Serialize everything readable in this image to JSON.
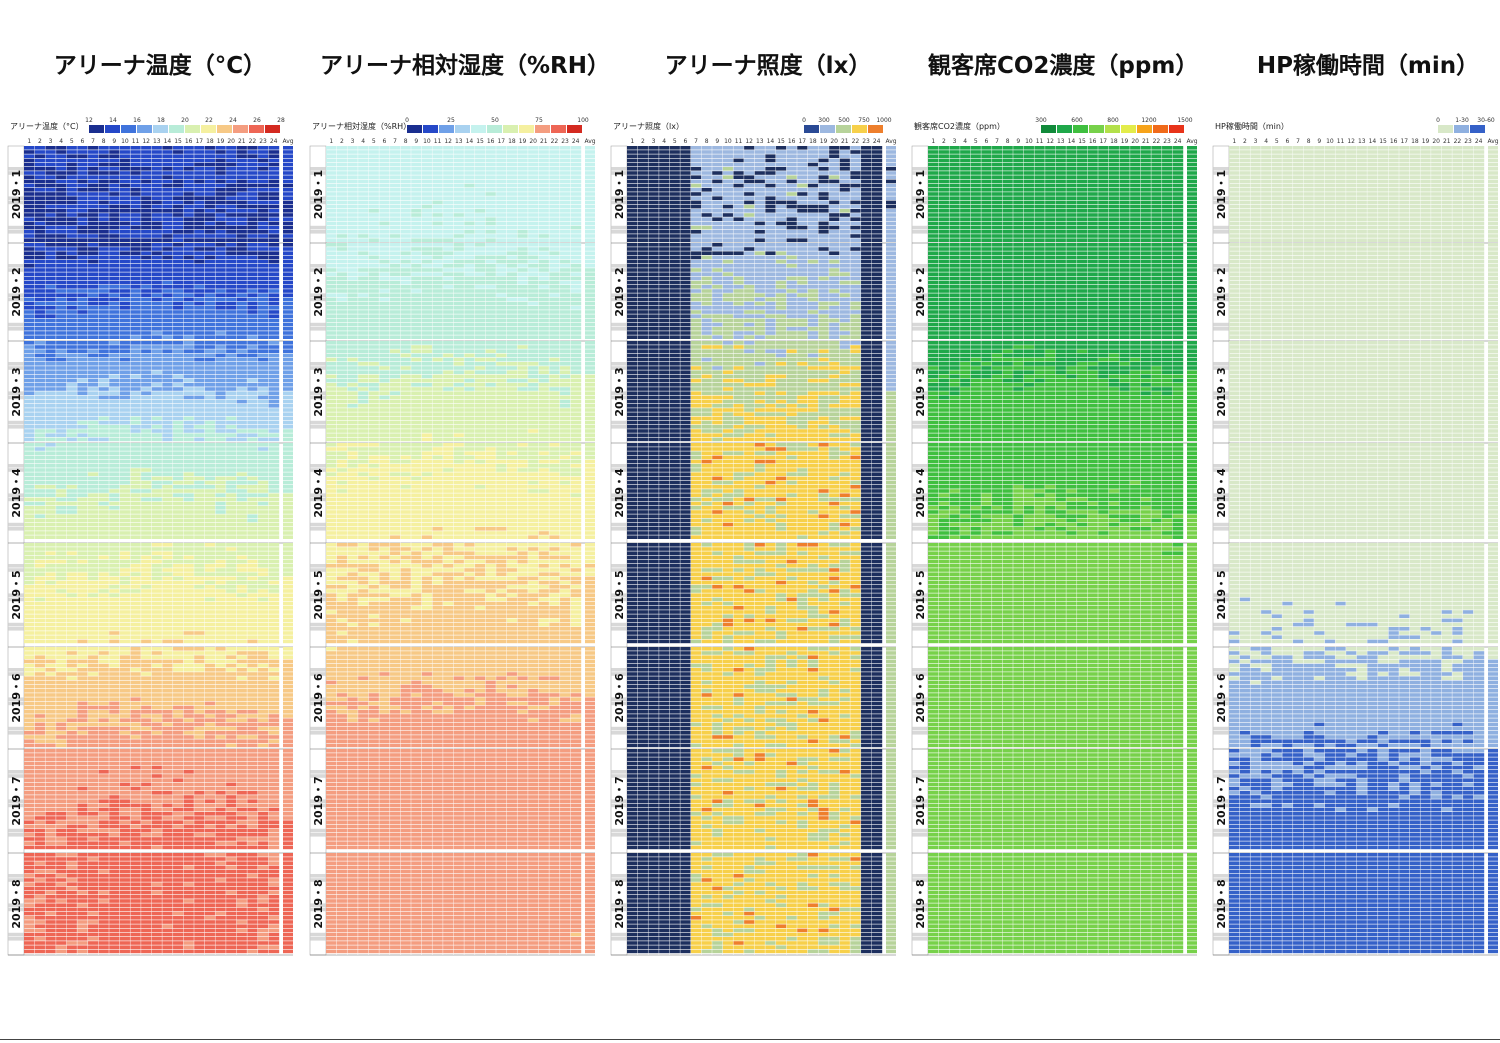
{
  "month_labels": [
    "2019・1",
    "2019・2",
    "2019・3",
    "2019・4",
    "2019・5",
    "2019・6",
    "2019・7",
    "2019・8"
  ],
  "hour_labels": [
    "1",
    "2",
    "3",
    "4",
    "5",
    "6",
    "7",
    "8",
    "9",
    "10",
    "11",
    "12",
    "13",
    "14",
    "15",
    "16",
    "17",
    "18",
    "19",
    "20",
    "21",
    "22",
    "23",
    "24"
  ],
  "avg_label": "Avg",
  "chart_data": [
    {
      "type": "heatmap",
      "title": "アリーナ温度（°C）",
      "inner_title": "アリーナ温度（°C）",
      "legend_ticks": [
        "12",
        "14",
        "16",
        "18",
        "20",
        "22",
        "24",
        "26",
        "28"
      ],
      "legend_colors": [
        "#1a2e8f",
        "#2548c8",
        "#3f73dc",
        "#6fa0e8",
        "#a9d2f0",
        "#b8ecd8",
        "#d9f0b0",
        "#f5f0a0",
        "#f7c986",
        "#f49d80",
        "#ee6655",
        "#d42a20"
      ],
      "month_profile": [
        11,
        10.5,
        14,
        18.5,
        21,
        23,
        26,
        27.5
      ],
      "scale": [
        10,
        30
      ],
      "palette": [
        "#1a2e8f",
        "#2548c8",
        "#3f73dc",
        "#6fa0e8",
        "#a9d2f0",
        "#b8ecd8",
        "#d9f0b0",
        "#f5f0a0",
        "#f7c986",
        "#f49d80",
        "#ee6655",
        "#e8573e"
      ]
    },
    {
      "type": "heatmap",
      "title": "アリーナ相対湿度（%RH）",
      "inner_title": "アリーナ相対湿度（%RH）",
      "legend_ticks": [
        "0",
        "25",
        "50",
        "75",
        "100"
      ],
      "legend_colors": [
        "#1a2e8f",
        "#2548c8",
        "#6fa0e8",
        "#a9d2f0",
        "#c5f2ee",
        "#b8ecd8",
        "#d9f0b0",
        "#f5f0a0",
        "#f49d80",
        "#ee6655",
        "#d42a20"
      ],
      "month_profile": [
        28,
        32,
        40,
        52,
        62,
        68,
        80,
        78
      ],
      "scale": [
        0,
        100
      ],
      "palette": [
        "#2548c8",
        "#6fa0e8",
        "#a9d2f0",
        "#c5f2ee",
        "#b8ecd8",
        "#d9f0b0",
        "#f5f0a0",
        "#f7c986",
        "#f49d80",
        "#ee6655",
        "#d42a20"
      ]
    },
    {
      "type": "heatmap",
      "title": "アリーナ照度（lx）",
      "inner_title": "アリーナ照度（lx）",
      "legend_ticks": [
        "0",
        "300",
        "500",
        "750",
        "1000"
      ],
      "legend_colors": [
        "#2a4a95",
        "#9db8e0",
        "#b7d39a",
        "#f7d04a",
        "#ee7f2c"
      ],
      "month_profile": [
        1,
        1,
        2,
        3,
        3,
        3,
        3,
        3
      ],
      "scale": [
        0,
        4
      ],
      "palette": [
        "#1d2f5e",
        "#9db8e0",
        "#b7d39a",
        "#f7d04a",
        "#ee7f2c"
      ]
    },
    {
      "type": "heatmap",
      "title": "観客席CO2濃度（ppm）",
      "inner_title": "観客席CO2濃度（ppm）",
      "legend_ticks": [
        "300",
        "600",
        "800",
        "1200",
        "1500"
      ],
      "legend_colors": [
        "#118a3a",
        "#1fa84a",
        "#3fbf3f",
        "#77d14a",
        "#b3e04a",
        "#e3ec4a",
        "#f7a31a",
        "#f06a1a",
        "#e8331a"
      ],
      "month_profile": [
        1,
        1,
        1.2,
        2,
        2.6,
        3,
        3,
        2.8
      ],
      "scale": [
        0,
        6
      ],
      "palette": [
        "#13893c",
        "#1fa84a",
        "#3fbf3f",
        "#77d14a",
        "#b3e04a",
        "#e3ec4a",
        "#f06a1a"
      ]
    },
    {
      "type": "heatmap",
      "title": "HP稼働時間（min）",
      "inner_title": "HP稼働時間（min）",
      "legend_ticks": [
        "0",
        "1-30",
        "30-60"
      ],
      "legend_colors": [
        "#d8e8c8",
        "#8fb0e0",
        "#3561c8"
      ],
      "month_profile": [
        0,
        0,
        0.1,
        0,
        0,
        0.4,
        1.5,
        1.9
      ],
      "scale": [
        0,
        2
      ],
      "palette": [
        "#d8e8c8",
        "#8fb0e0",
        "#3561c8"
      ]
    }
  ]
}
